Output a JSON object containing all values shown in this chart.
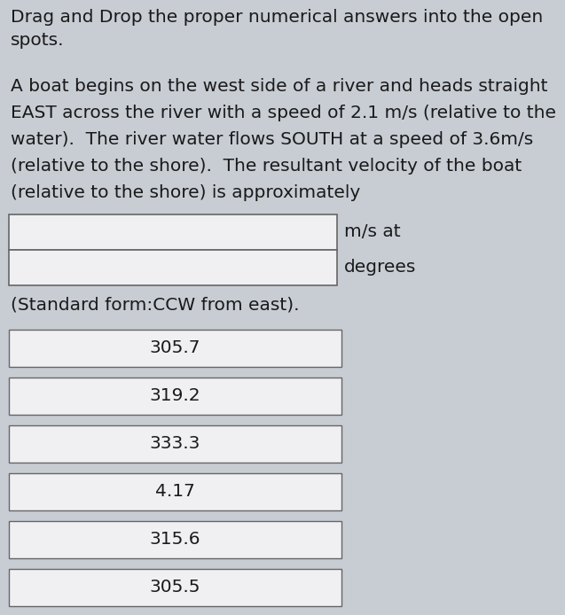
{
  "title_line1": "Drag and Drop the proper numerical answers into the open",
  "title_line2": "spots.",
  "para_lines": [
    "A boat begins on the west side of a river and heads straight",
    "EAST across the river with a speed of 2.1 m/s (relative to the",
    "water).  The river water flows SOUTH at a speed of 3.6m/s",
    "(relative to the shore).  The resultant velocity of the boat",
    "(relative to the shore) is approximately"
  ],
  "blank_labels": [
    "m/s at",
    "degrees"
  ],
  "footer_text": "(Standard form:CCW from east).",
  "answer_choices": [
    "305.7",
    "319.2",
    "333.3",
    "4.17",
    "315.6",
    "305.5"
  ],
  "bg_color": "#c8cdd4",
  "box_bg_color": "#f0f0f2",
  "box_border_color": "#666666",
  "text_color": "#1a1a1a",
  "font_size": 14.5
}
